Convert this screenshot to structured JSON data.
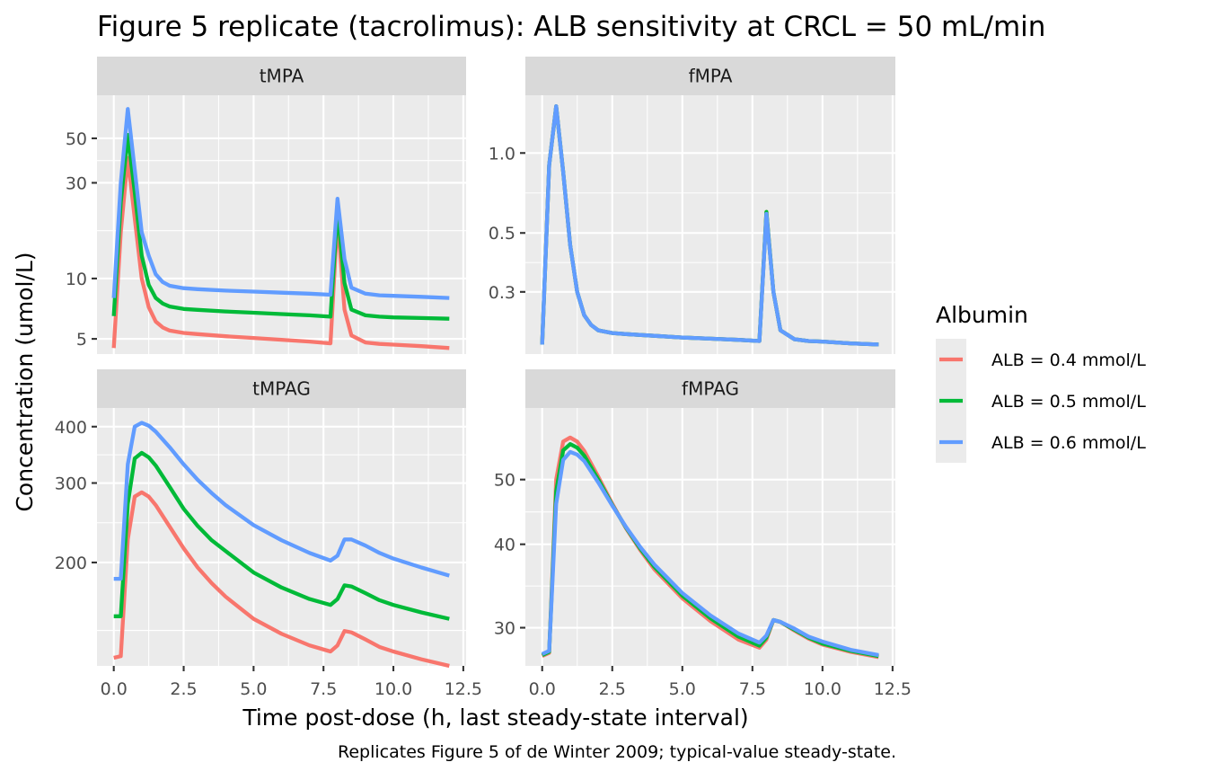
{
  "chart_data": {
    "type": "line",
    "title": "Figure 5 replicate (tacrolimus): ALB sensitivity at CRCL = 50 mL/min",
    "xlabel": "Time post-dose (h, last steady-state interval)",
    "ylabel": "Concentration (umol/L)",
    "caption": "Replicates Figure 5 of de Winter 2009; typical-value steady-state.",
    "xlim": [
      -0.6,
      12.6
    ],
    "x_ticks": [
      0,
      2.5,
      5,
      7.5,
      10,
      12.5
    ],
    "x_tick_labels": [
      "0.0",
      "2.5",
      "5.0",
      "7.5",
      "10.0",
      "12.5"
    ],
    "grid": true,
    "y_scale": "log",
    "legend": {
      "title": "Albumin",
      "position": "right",
      "entries": [
        "ALB = 0.4 mmol/L",
        "ALB = 0.5 mmol/L",
        "ALB = 0.6 mmol/L"
      ]
    },
    "colors": {
      "ALB = 0.4 mmol/L": "#F8766D",
      "ALB = 0.5 mmol/L": "#00BA38",
      "ALB = 0.6 mmol/L": "#619CFF"
    },
    "panels": [
      {
        "strip": "tMPA",
        "y_ticks": [
          5,
          10,
          30,
          50
        ],
        "y_tick_labels": [
          "5",
          "10",
          "30",
          "50"
        ],
        "y_minor": [
          3.873,
          17.32,
          38.73
        ],
        "ylim": [
          4.2,
          82
        ],
        "series": [
          {
            "name": "ALB = 0.4 mmol/L",
            "x": [
              0,
              0.25,
              0.5,
              0.75,
              1,
              1.25,
              1.5,
              1.75,
              2,
              2.5,
              3,
              4,
              5,
              6,
              7,
              7.75,
              8,
              8.25,
              8.5,
              9,
              9.5,
              10,
              11,
              12
            ],
            "y": [
              4.5,
              17,
              40,
              20,
              10,
              7.2,
              6.1,
              5.7,
              5.5,
              5.35,
              5.28,
              5.15,
              5.05,
              4.95,
              4.85,
              4.75,
              20,
              7,
              5.2,
              4.8,
              4.72,
              4.68,
              4.6,
              4.5
            ]
          },
          {
            "name": "ALB = 0.5 mmol/L",
            "x": [
              0,
              0.25,
              0.5,
              0.75,
              1,
              1.25,
              1.5,
              1.75,
              2,
              2.5,
              3,
              4,
              5,
              6,
              7,
              7.75,
              8,
              8.25,
              8.5,
              9,
              9.5,
              10,
              11,
              12
            ],
            "y": [
              6.5,
              24,
              52,
              27,
              13,
              9.3,
              8,
              7.5,
              7.25,
              7.05,
              6.98,
              6.85,
              6.75,
              6.65,
              6.55,
              6.45,
              22,
              9.5,
              7,
              6.55,
              6.45,
              6.4,
              6.35,
              6.3
            ]
          },
          {
            "name": "ALB = 0.6 mmol/L",
            "x": [
              0,
              0.25,
              0.5,
              0.75,
              1,
              1.25,
              1.5,
              1.75,
              2,
              2.5,
              3,
              4,
              5,
              6,
              7,
              7.75,
              8,
              8.25,
              8.5,
              9,
              9.5,
              10,
              11,
              12
            ],
            "y": [
              8,
              30,
              70,
              35,
              17,
              13,
              10.5,
              9.6,
              9.2,
              8.95,
              8.85,
              8.7,
              8.6,
              8.5,
              8.4,
              8.3,
              25,
              12.5,
              9,
              8.4,
              8.25,
              8.2,
              8.1,
              8
            ]
          }
        ]
      },
      {
        "strip": "fMPA",
        "y_ticks": [
          0.3,
          0.5,
          1.0
        ],
        "y_tick_labels": [
          "0.3",
          "0.5",
          "1.0"
        ],
        "y_minor": [
          0.387,
          0.707
        ],
        "ylim": [
          0.175,
          1.65
        ],
        "series": [
          {
            "name": "ALB = 0.4 mmol/L",
            "x": [
              0,
              0.25,
              0.5,
              0.75,
              1,
              1.25,
              1.5,
              1.75,
              2,
              2.5,
              3,
              4,
              5,
              6,
              7,
              7.75,
              8,
              8.25,
              8.5,
              9,
              9.5,
              10,
              11,
              12
            ],
            "y": [
              0.19,
              0.9,
              1.5,
              0.85,
              0.45,
              0.3,
              0.245,
              0.225,
              0.215,
              0.21,
              0.208,
              0.205,
              0.202,
              0.2,
              0.198,
              0.196,
              0.6,
              0.3,
              0.215,
              0.199,
              0.196,
              0.195,
              0.192,
              0.19
            ]
          },
          {
            "name": "ALB = 0.5 mmol/L",
            "x": [
              0,
              0.25,
              0.5,
              0.75,
              1,
              1.25,
              1.5,
              1.75,
              2,
              2.5,
              3,
              4,
              5,
              6,
              7,
              7.75,
              8,
              8.25,
              8.5,
              9,
              9.5,
              10,
              11,
              12
            ],
            "y": [
              0.19,
              0.9,
              1.5,
              0.85,
              0.45,
              0.3,
              0.245,
              0.225,
              0.215,
              0.21,
              0.208,
              0.205,
              0.202,
              0.2,
              0.198,
              0.196,
              0.6,
              0.3,
              0.215,
              0.199,
              0.196,
              0.195,
              0.192,
              0.19
            ]
          },
          {
            "name": "ALB = 0.6 mmol/L",
            "x": [
              0,
              0.25,
              0.5,
              0.75,
              1,
              1.25,
              1.5,
              1.75,
              2,
              2.5,
              3,
              4,
              5,
              6,
              7,
              7.75,
              8,
              8.25,
              8.5,
              9,
              9.5,
              10,
              11,
              12
            ],
            "y": [
              0.19,
              0.9,
              1.5,
              0.85,
              0.45,
              0.3,
              0.245,
              0.225,
              0.215,
              0.21,
              0.208,
              0.205,
              0.202,
              0.2,
              0.198,
              0.196,
              0.59,
              0.3,
              0.215,
              0.199,
              0.196,
              0.195,
              0.192,
              0.19
            ]
          }
        ]
      },
      {
        "strip": "tMPAG",
        "y_ticks": [
          200,
          300,
          400
        ],
        "y_tick_labels": [
          "200",
          "300",
          "400"
        ],
        "y_minor": [
          141.4,
          244.9,
          346.4
        ],
        "ylim": [
          118,
          440
        ],
        "series": [
          {
            "name": "ALB = 0.4 mmol/L",
            "x": [
              0,
              0.25,
              0.5,
              0.75,
              1,
              1.25,
              1.5,
              2,
              2.5,
              3,
              3.5,
              4,
              5,
              6,
              7,
              7.75,
              8,
              8.25,
              8.5,
              9,
              9.5,
              10,
              11,
              12
            ],
            "y": [
              123,
              124,
              225,
              280,
              286,
              280,
              268,
              240,
              215,
              195,
              180,
              168,
              150,
              139,
              131,
              127,
              131,
              141,
              140,
              135,
              130,
              127,
              122,
              118
            ]
          },
          {
            "name": "ALB = 0.5 mmol/L",
            "x": [
              0,
              0.25,
              0.5,
              0.75,
              1,
              1.25,
              1.5,
              2,
              2.5,
              3,
              3.5,
              4,
              5,
              6,
              7,
              7.75,
              8,
              8.25,
              8.5,
              9,
              9.5,
              10,
              11,
              12
            ],
            "y": [
              152,
              152,
              270,
              340,
              350,
              342,
              328,
              294,
              263,
              241,
              224,
              212,
              190,
              176,
              166,
              161,
              166,
              178,
              177,
              171,
              165,
              161,
              155,
              150
            ]
          },
          {
            "name": "ALB = 0.6 mmol/L",
            "x": [
              0,
              0.25,
              0.5,
              0.75,
              1,
              1.25,
              1.5,
              2,
              2.5,
              3,
              3.5,
              4,
              5,
              6,
              7,
              7.75,
              8,
              8.25,
              8.5,
              9,
              9.5,
              10,
              11,
              12
            ],
            "y": [
              184,
              184,
              330,
              400,
              408,
              402,
              390,
              360,
              330,
              305,
              285,
              268,
              242,
              224,
              210,
              202,
              207,
              225,
              225,
              218,
              210,
              204,
              195,
              187
            ]
          }
        ]
      },
      {
        "strip": "fMPAG",
        "y_ticks": [
          30,
          40,
          50
        ],
        "y_tick_labels": [
          "30",
          "40",
          "50"
        ],
        "y_minor": [
          34.64,
          44.72
        ],
        "ylim": [
          26.3,
          64
        ],
        "series": [
          {
            "name": "ALB = 0.4 mmol/L",
            "x": [
              0,
              0.25,
              0.5,
              0.75,
              1,
              1.25,
              1.5,
              2,
              2.5,
              3,
              3.5,
              4,
              5,
              6,
              7,
              7.75,
              8,
              8.25,
              8.5,
              9,
              9.5,
              10,
              11,
              12
            ],
            "y": [
              27.2,
              27.5,
              50,
              57,
              57.8,
              57,
              55.2,
              50.5,
              46,
              42.2,
              39.2,
              36.7,
              33.2,
              30.7,
              28.8,
              28,
              28.8,
              30.8,
              30.6,
              29.7,
              28.9,
              28.3,
              27.6,
              27.1
            ]
          },
          {
            "name": "ALB = 0.5 mmol/L",
            "x": [
              0,
              0.25,
              0.5,
              0.75,
              1,
              1.25,
              1.5,
              2,
              2.5,
              3,
              3.5,
              4,
              5,
              6,
              7,
              7.75,
              8,
              8.25,
              8.5,
              9,
              9.5,
              10,
              11,
              12
            ],
            "y": [
              27.3,
              27.6,
              48,
              55.3,
              56.5,
              55.8,
              54.3,
              50,
              45.8,
              42.3,
              39.4,
              37,
              33.5,
              31,
              29.1,
              28.2,
              29,
              30.8,
              30.6,
              29.8,
              29,
              28.4,
              27.7,
              27.2
            ]
          },
          {
            "name": "ALB = 0.6 mmol/L",
            "x": [
              0,
              0.25,
              0.5,
              0.75,
              1,
              1.25,
              1.5,
              2,
              2.5,
              3,
              3.5,
              4,
              5,
              6,
              7,
              7.75,
              8,
              8.25,
              8.5,
              9,
              9.5,
              10,
              11,
              12
            ],
            "y": [
              27.4,
              27.7,
              46,
              53.5,
              55,
              54.5,
              53.3,
              49.5,
              45.7,
              42.4,
              39.6,
              37.3,
              33.8,
              31.3,
              29.4,
              28.5,
              29.2,
              30.8,
              30.6,
              29.9,
              29.1,
              28.6,
              27.8,
              27.3
            ]
          }
        ]
      }
    ]
  }
}
